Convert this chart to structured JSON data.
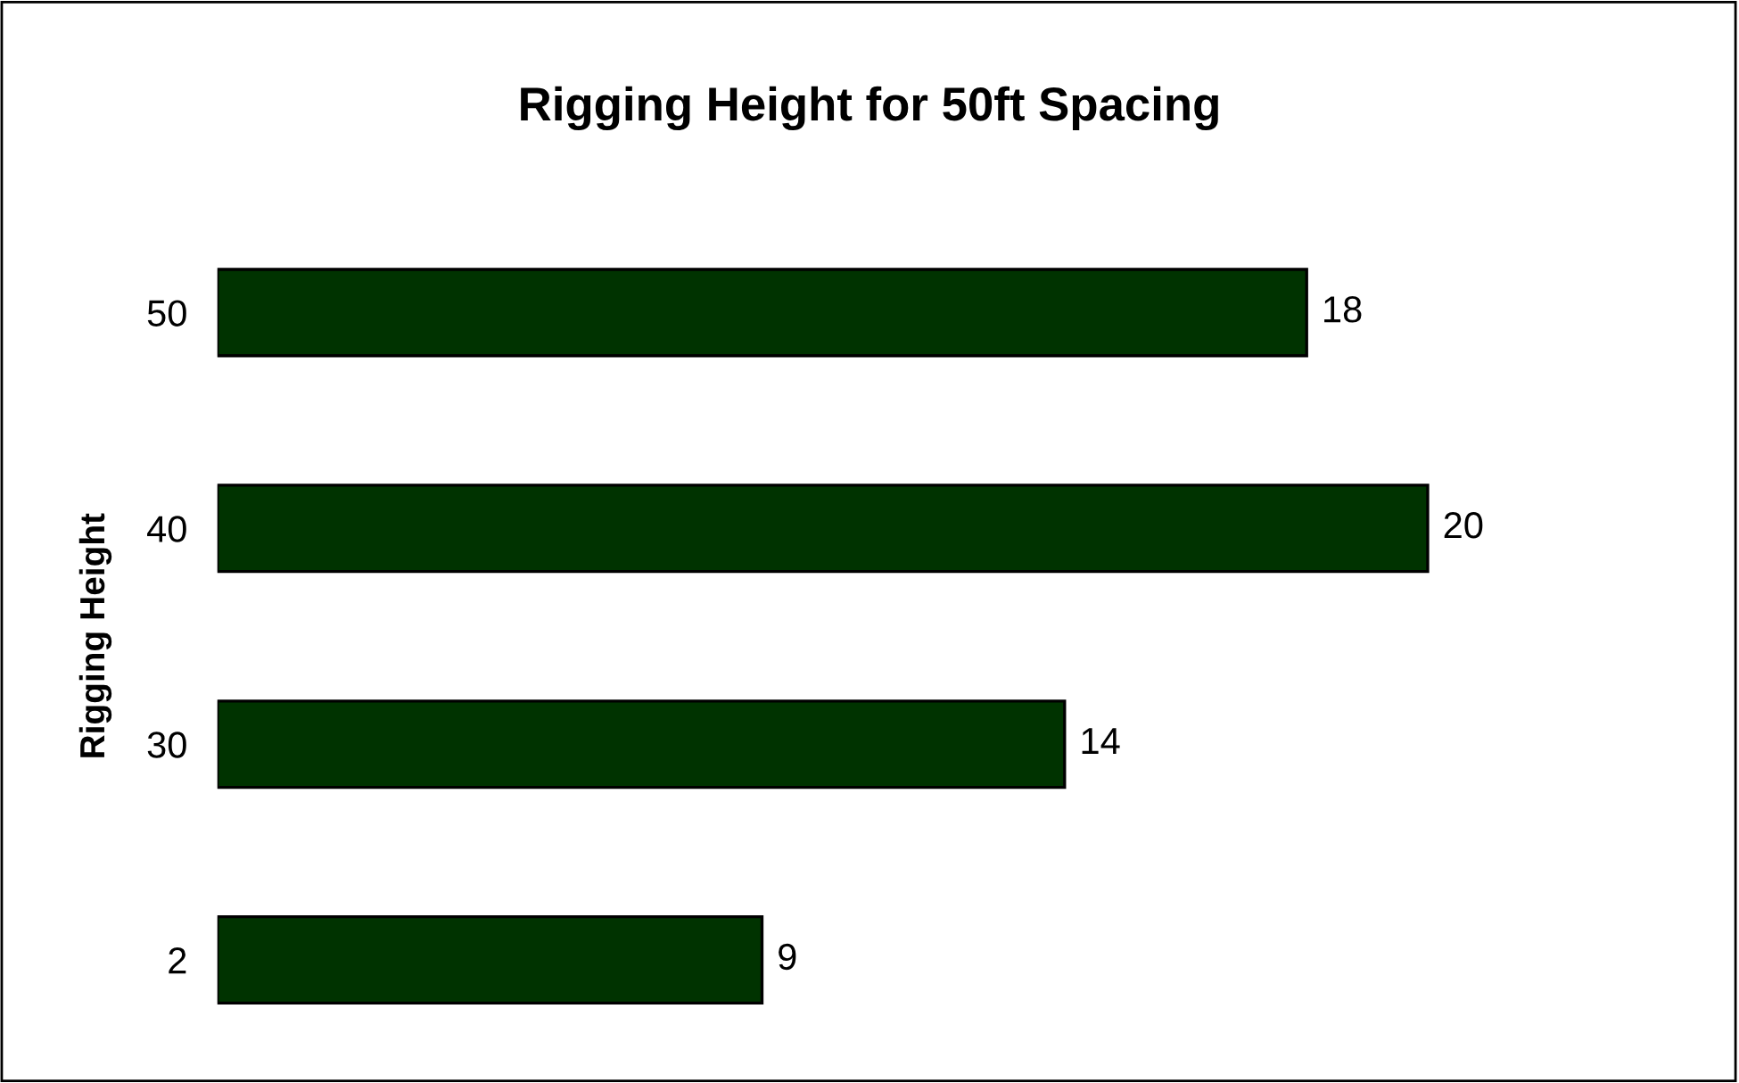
{
  "chart_data": {
    "type": "bar",
    "orientation": "horizontal",
    "title": "Rigging Height for 50ft Spacing",
    "ylabel": "Rigging Height",
    "categories": [
      "50",
      "40",
      "30",
      "2"
    ],
    "values": [
      18,
      20,
      14,
      9
    ],
    "color": "#003300",
    "data_labels": true,
    "grid": false,
    "legend": false
  }
}
